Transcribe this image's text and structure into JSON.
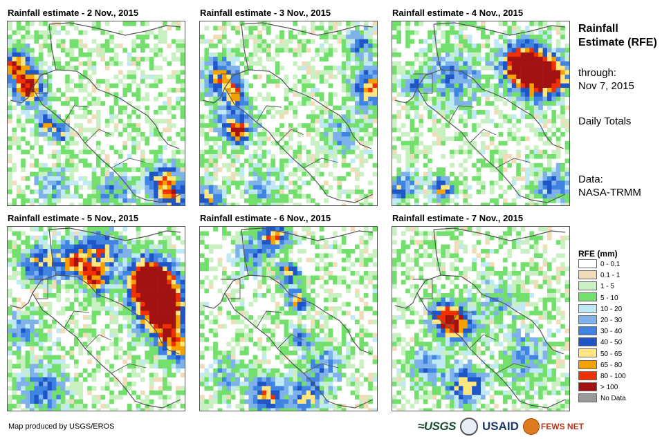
{
  "maps": [
    {
      "title": "Rainfall estimate - 2 Nov., 2015",
      "seed": 2,
      "hotspots": [
        [
          0.05,
          0.25,
          0.1,
          0.9
        ],
        [
          0.13,
          0.37,
          0.08,
          0.9
        ],
        [
          0.22,
          0.55,
          0.06,
          0.7
        ],
        [
          0.3,
          0.6,
          0.05,
          0.6
        ],
        [
          0.88,
          0.85,
          0.1,
          0.7
        ],
        [
          0.93,
          0.95,
          0.08,
          0.6
        ],
        [
          0.6,
          0.92,
          0.12,
          0.4
        ],
        [
          0.25,
          0.88,
          0.1,
          0.4
        ]
      ]
    },
    {
      "title": "Rainfall estimate - 3 Nov., 2015",
      "seed": 3,
      "hotspots": [
        [
          0.12,
          0.3,
          0.1,
          0.8
        ],
        [
          0.2,
          0.4,
          0.06,
          0.7
        ],
        [
          0.96,
          0.35,
          0.1,
          0.8
        ],
        [
          0.9,
          0.12,
          0.08,
          0.5
        ],
        [
          0.2,
          0.55,
          0.12,
          0.5
        ],
        [
          0.22,
          0.6,
          0.06,
          0.6
        ],
        [
          0.05,
          0.95,
          0.08,
          0.7
        ],
        [
          0.35,
          0.9,
          0.1,
          0.4
        ],
        [
          0.8,
          0.6,
          0.12,
          0.35
        ]
      ]
    },
    {
      "title": "Rainfall estimate - 4 Nov., 2015",
      "seed": 4,
      "hotspots": [
        [
          0.8,
          0.28,
          0.14,
          1.0
        ],
        [
          0.72,
          0.22,
          0.1,
          0.8
        ],
        [
          0.92,
          0.3,
          0.1,
          0.7
        ],
        [
          0.35,
          0.3,
          0.16,
          0.45
        ],
        [
          0.12,
          0.35,
          0.06,
          0.5
        ],
        [
          0.28,
          0.9,
          0.06,
          0.8
        ],
        [
          0.05,
          0.9,
          0.08,
          0.6
        ],
        [
          0.9,
          0.88,
          0.1,
          0.5
        ]
      ]
    },
    {
      "title": "Rainfall estimate - 5 Nov., 2015",
      "seed": 5,
      "hotspots": [
        [
          0.84,
          0.35,
          0.16,
          1.05
        ],
        [
          0.8,
          0.28,
          0.1,
          0.95
        ],
        [
          0.88,
          0.5,
          0.12,
          0.8
        ],
        [
          0.38,
          0.18,
          0.1,
          0.85
        ],
        [
          0.55,
          0.12,
          0.1,
          0.7
        ],
        [
          0.5,
          0.28,
          0.08,
          0.8
        ],
        [
          0.18,
          0.2,
          0.1,
          0.7
        ],
        [
          0.08,
          0.55,
          0.1,
          0.45
        ],
        [
          0.2,
          0.88,
          0.14,
          0.5
        ],
        [
          0.95,
          0.65,
          0.1,
          0.7
        ]
      ]
    },
    {
      "title": "Rainfall estimate - 6 Nov., 2015",
      "seed": 6,
      "hotspots": [
        [
          0.42,
          0.05,
          0.08,
          0.8
        ],
        [
          0.5,
          0.25,
          0.06,
          0.75
        ],
        [
          0.55,
          0.4,
          0.06,
          0.75
        ],
        [
          0.57,
          0.6,
          0.06,
          0.55
        ],
        [
          0.38,
          0.9,
          0.1,
          0.8
        ],
        [
          0.6,
          0.92,
          0.1,
          0.6
        ],
        [
          0.7,
          0.75,
          0.12,
          0.4
        ],
        [
          0.15,
          0.8,
          0.1,
          0.35
        ],
        [
          0.3,
          0.15,
          0.1,
          0.45
        ]
      ]
    },
    {
      "title": "Rainfall estimate - 7 Nov., 2015",
      "seed": 7,
      "hotspots": [
        [
          0.36,
          0.52,
          0.1,
          0.85
        ],
        [
          0.28,
          0.48,
          0.08,
          0.6
        ],
        [
          0.42,
          0.85,
          0.1,
          0.8
        ],
        [
          0.2,
          0.75,
          0.1,
          0.45
        ],
        [
          0.75,
          0.7,
          0.14,
          0.4
        ],
        [
          0.6,
          0.4,
          0.12,
          0.35
        ]
      ]
    }
  ],
  "side": {
    "title": "Rainfall Estimate (RFE)",
    "through": "through:",
    "date": "Nov 7, 2015",
    "daily": "Daily Totals",
    "data_label": "Data:",
    "data_source": "NASA-TRMM"
  },
  "legend": {
    "title": "RFE (mm)",
    "items": [
      {
        "label": "0 - 0.1",
        "color": "#ffffff"
      },
      {
        "label": "0.1 - 1",
        "color": "#f0dcb8"
      },
      {
        "label": "1 - 5",
        "color": "#c8f0c0"
      },
      {
        "label": "5 - 10",
        "color": "#73e06e"
      },
      {
        "label": "10 - 20",
        "color": "#bfe9f5"
      },
      {
        "label": "20 - 30",
        "color": "#7fb2ea"
      },
      {
        "label": "30 - 40",
        "color": "#3f84e0"
      },
      {
        "label": "40 - 50",
        "color": "#1e56c8"
      },
      {
        "label": "50 - 65",
        "color": "#ffe680"
      },
      {
        "label": "65 - 80",
        "color": "#f5a200"
      },
      {
        "label": "80 - 100",
        "color": "#f03000"
      },
      {
        "label": "> 100",
        "color": "#a31212"
      },
      {
        "label": "No Data",
        "color": "#999999"
      }
    ]
  },
  "credit": "Map produced by USGS/EROS",
  "logos": {
    "usgs": "≈USGS",
    "usaid": "USAID",
    "fews": "FEWS NET"
  }
}
